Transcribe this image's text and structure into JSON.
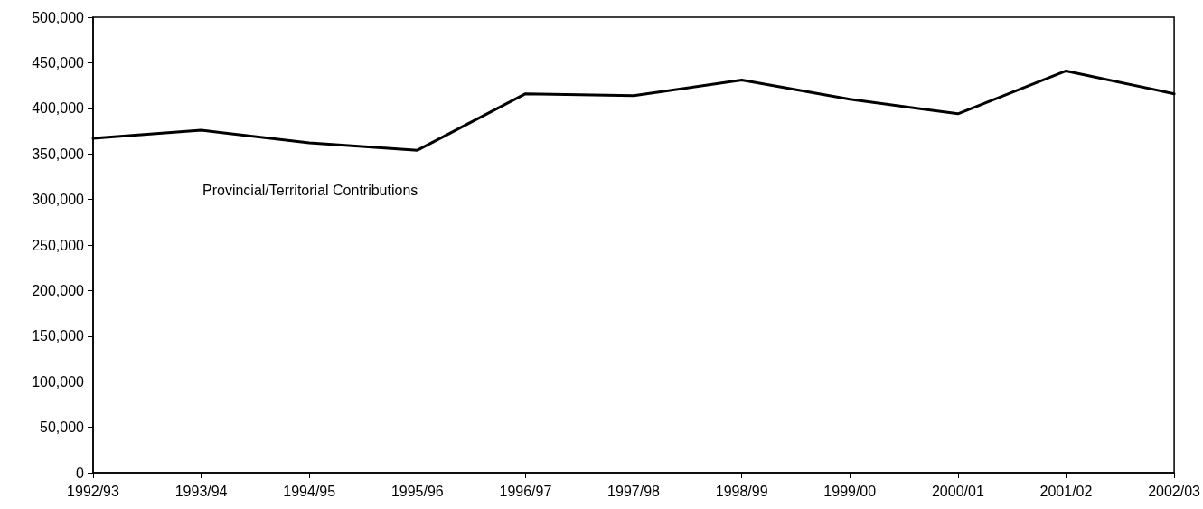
{
  "chart_data": {
    "type": "line",
    "categories": [
      "1992/93",
      "1993/94",
      "1994/95",
      "1995/96",
      "1996/97",
      "1997/98",
      "1998/99",
      "1999/00",
      "2000/01",
      "2001/02",
      "2002/03"
    ],
    "series": [
      {
        "name": "Provincial/Territorial Contributions",
        "color": "#000000",
        "values": [
          367000,
          376000,
          362000,
          354000,
          416000,
          414000,
          431000,
          410000,
          394000,
          441000,
          416000
        ]
      }
    ],
    "ylim": [
      0,
      500000
    ],
    "yticks": [
      0,
      {
        "value": 50000,
        "label": "50,000"
      },
      {
        "value": 100000,
        "label": "100,000"
      },
      {
        "value": 150000,
        "label": "150,000"
      },
      {
        "value": 200000,
        "label": "200,000"
      },
      {
        "value": 250000,
        "label": "250,000"
      },
      {
        "value": 300000,
        "label": "300,000"
      },
      {
        "value": 350000,
        "label": "350,000"
      },
      {
        "value": 400000,
        "label": "400,000"
      },
      {
        "value": 450000,
        "label": "450,000"
      },
      {
        "value": 500000,
        "label": "500,000"
      }
    ],
    "grid": false,
    "legend": false,
    "marker": "none",
    "line_style": "solid"
  }
}
